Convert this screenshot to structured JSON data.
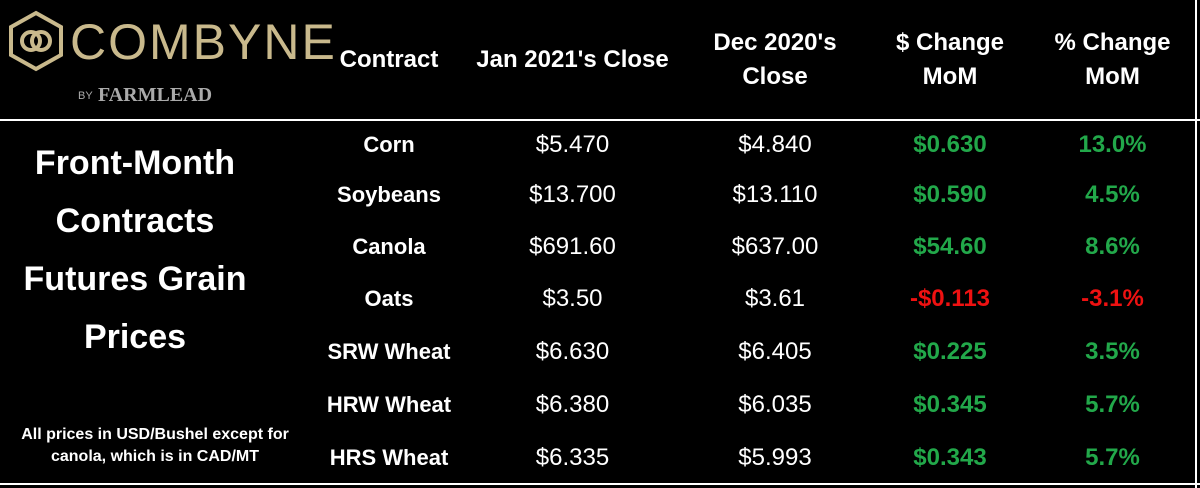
{
  "logo": {
    "name": "COMBYNE",
    "by": "BY",
    "brand": "FARMLEAD"
  },
  "side": {
    "title": "Front-Month Contracts Futures Grain Prices",
    "note": "All prices in USD/Bushel except for canola, which is in CAD/MT"
  },
  "table": {
    "header": [
      "Contract",
      "Jan 2021's Close",
      "Dec 2020's Close",
      "$ Change MoM",
      "% Change MoM"
    ],
    "rows": [
      [
        "Corn",
        "$5.470",
        "$4.840",
        "$0.630",
        "13.0%"
      ],
      [
        "Soybeans",
        "$13.700",
        "$13.110",
        "$0.590",
        "4.5%"
      ],
      [
        "Canola",
        "$691.60",
        "$637.00",
        "$54.60",
        "8.6%"
      ],
      [
        "Oats",
        "$3.50",
        "$3.61",
        "-$0.113",
        "-3.1%"
      ],
      [
        "SRW Wheat",
        "$6.630",
        "$6.405",
        "$0.225",
        "3.5%"
      ],
      [
        "HRW Wheat",
        "$6.380",
        "$6.035",
        "$0.345",
        "5.7%"
      ],
      [
        "HRS Wheat",
        "$6.335",
        "$5.993",
        "$0.343",
        "5.7%"
      ]
    ]
  }
}
